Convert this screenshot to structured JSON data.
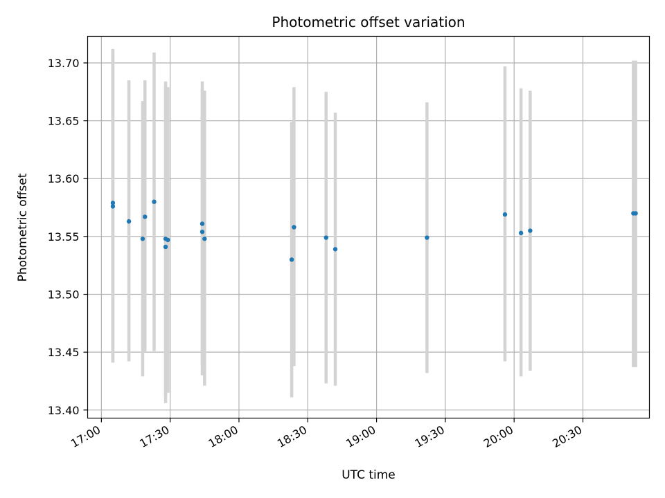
{
  "chart_data": {
    "type": "scatter",
    "title": "Photometric offset variation",
    "xlabel": "UTC time",
    "ylabel": "Photometric offset",
    "x_tick_labels": [
      "17:00",
      "17:30",
      "18:00",
      "18:30",
      "19:00",
      "19:30",
      "20:00",
      "20:30"
    ],
    "y_tick_labels": [
      "13.40",
      "13.45",
      "13.50",
      "13.55",
      "13.60",
      "13.65",
      "13.70"
    ],
    "x_ticks": [
      "17:00",
      "17:30",
      "18:00",
      "18:30",
      "19:00",
      "19:30",
      "20:00",
      "20:30"
    ],
    "y_ticks": [
      13.4,
      13.45,
      13.5,
      13.55,
      13.6,
      13.65,
      13.7
    ],
    "xlim": [
      "16:54",
      "20:59"
    ],
    "ylim": [
      13.393,
      13.723
    ],
    "grid": true,
    "legend": "none",
    "points": [
      {
        "time": "17:05",
        "y": 13.579,
        "ylow": 13.441,
        "yhigh": 13.712
      },
      {
        "time": "17:05",
        "y": 13.576,
        "ylow": 13.441,
        "yhigh": 13.711
      },
      {
        "time": "17:12",
        "y": 13.563,
        "ylow": 13.442,
        "yhigh": 13.685
      },
      {
        "time": "17:18",
        "y": 13.548,
        "ylow": 13.429,
        "yhigh": 13.667
      },
      {
        "time": "17:19",
        "y": 13.567,
        "ylow": 13.45,
        "yhigh": 13.685
      },
      {
        "time": "17:23",
        "y": 13.58,
        "ylow": 13.451,
        "yhigh": 13.709
      },
      {
        "time": "17:28",
        "y": 13.548,
        "ylow": 13.412,
        "yhigh": 13.684
      },
      {
        "time": "17:28",
        "y": 13.541,
        "ylow": 13.406,
        "yhigh": 13.68
      },
      {
        "time": "17:29",
        "y": 13.547,
        "ylow": 13.415,
        "yhigh": 13.679
      },
      {
        "time": "17:44",
        "y": 13.561,
        "ylow": 13.439,
        "yhigh": 13.684
      },
      {
        "time": "17:44",
        "y": 13.554,
        "ylow": 13.43,
        "yhigh": 13.678
      },
      {
        "time": "17:45",
        "y": 13.548,
        "ylow": 13.421,
        "yhigh": 13.676
      },
      {
        "time": "18:23",
        "y": 13.53,
        "ylow": 13.411,
        "yhigh": 13.649
      },
      {
        "time": "18:24",
        "y": 13.558,
        "ylow": 13.438,
        "yhigh": 13.679
      },
      {
        "time": "18:38",
        "y": 13.549,
        "ylow": 13.423,
        "yhigh": 13.675
      },
      {
        "time": "18:42",
        "y": 13.539,
        "ylow": 13.421,
        "yhigh": 13.657
      },
      {
        "time": "19:22",
        "y": 13.549,
        "ylow": 13.432,
        "yhigh": 13.666
      },
      {
        "time": "19:56",
        "y": 13.569,
        "ylow": 13.442,
        "yhigh": 13.697
      },
      {
        "time": "20:03",
        "y": 13.553,
        "ylow": 13.429,
        "yhigh": 13.678
      },
      {
        "time": "20:07",
        "y": 13.555,
        "ylow": 13.434,
        "yhigh": 13.676
      },
      {
        "time": "20:52",
        "y": 13.57,
        "ylow": 13.437,
        "yhigh": 13.702
      },
      {
        "time": "20:53",
        "y": 13.57,
        "ylow": 13.437,
        "yhigh": 13.702
      }
    ],
    "colors": {
      "point": "#1f77b4",
      "errorbar": "#d3d3d3",
      "grid": "#b0b0b0",
      "axes": "#000000"
    }
  }
}
